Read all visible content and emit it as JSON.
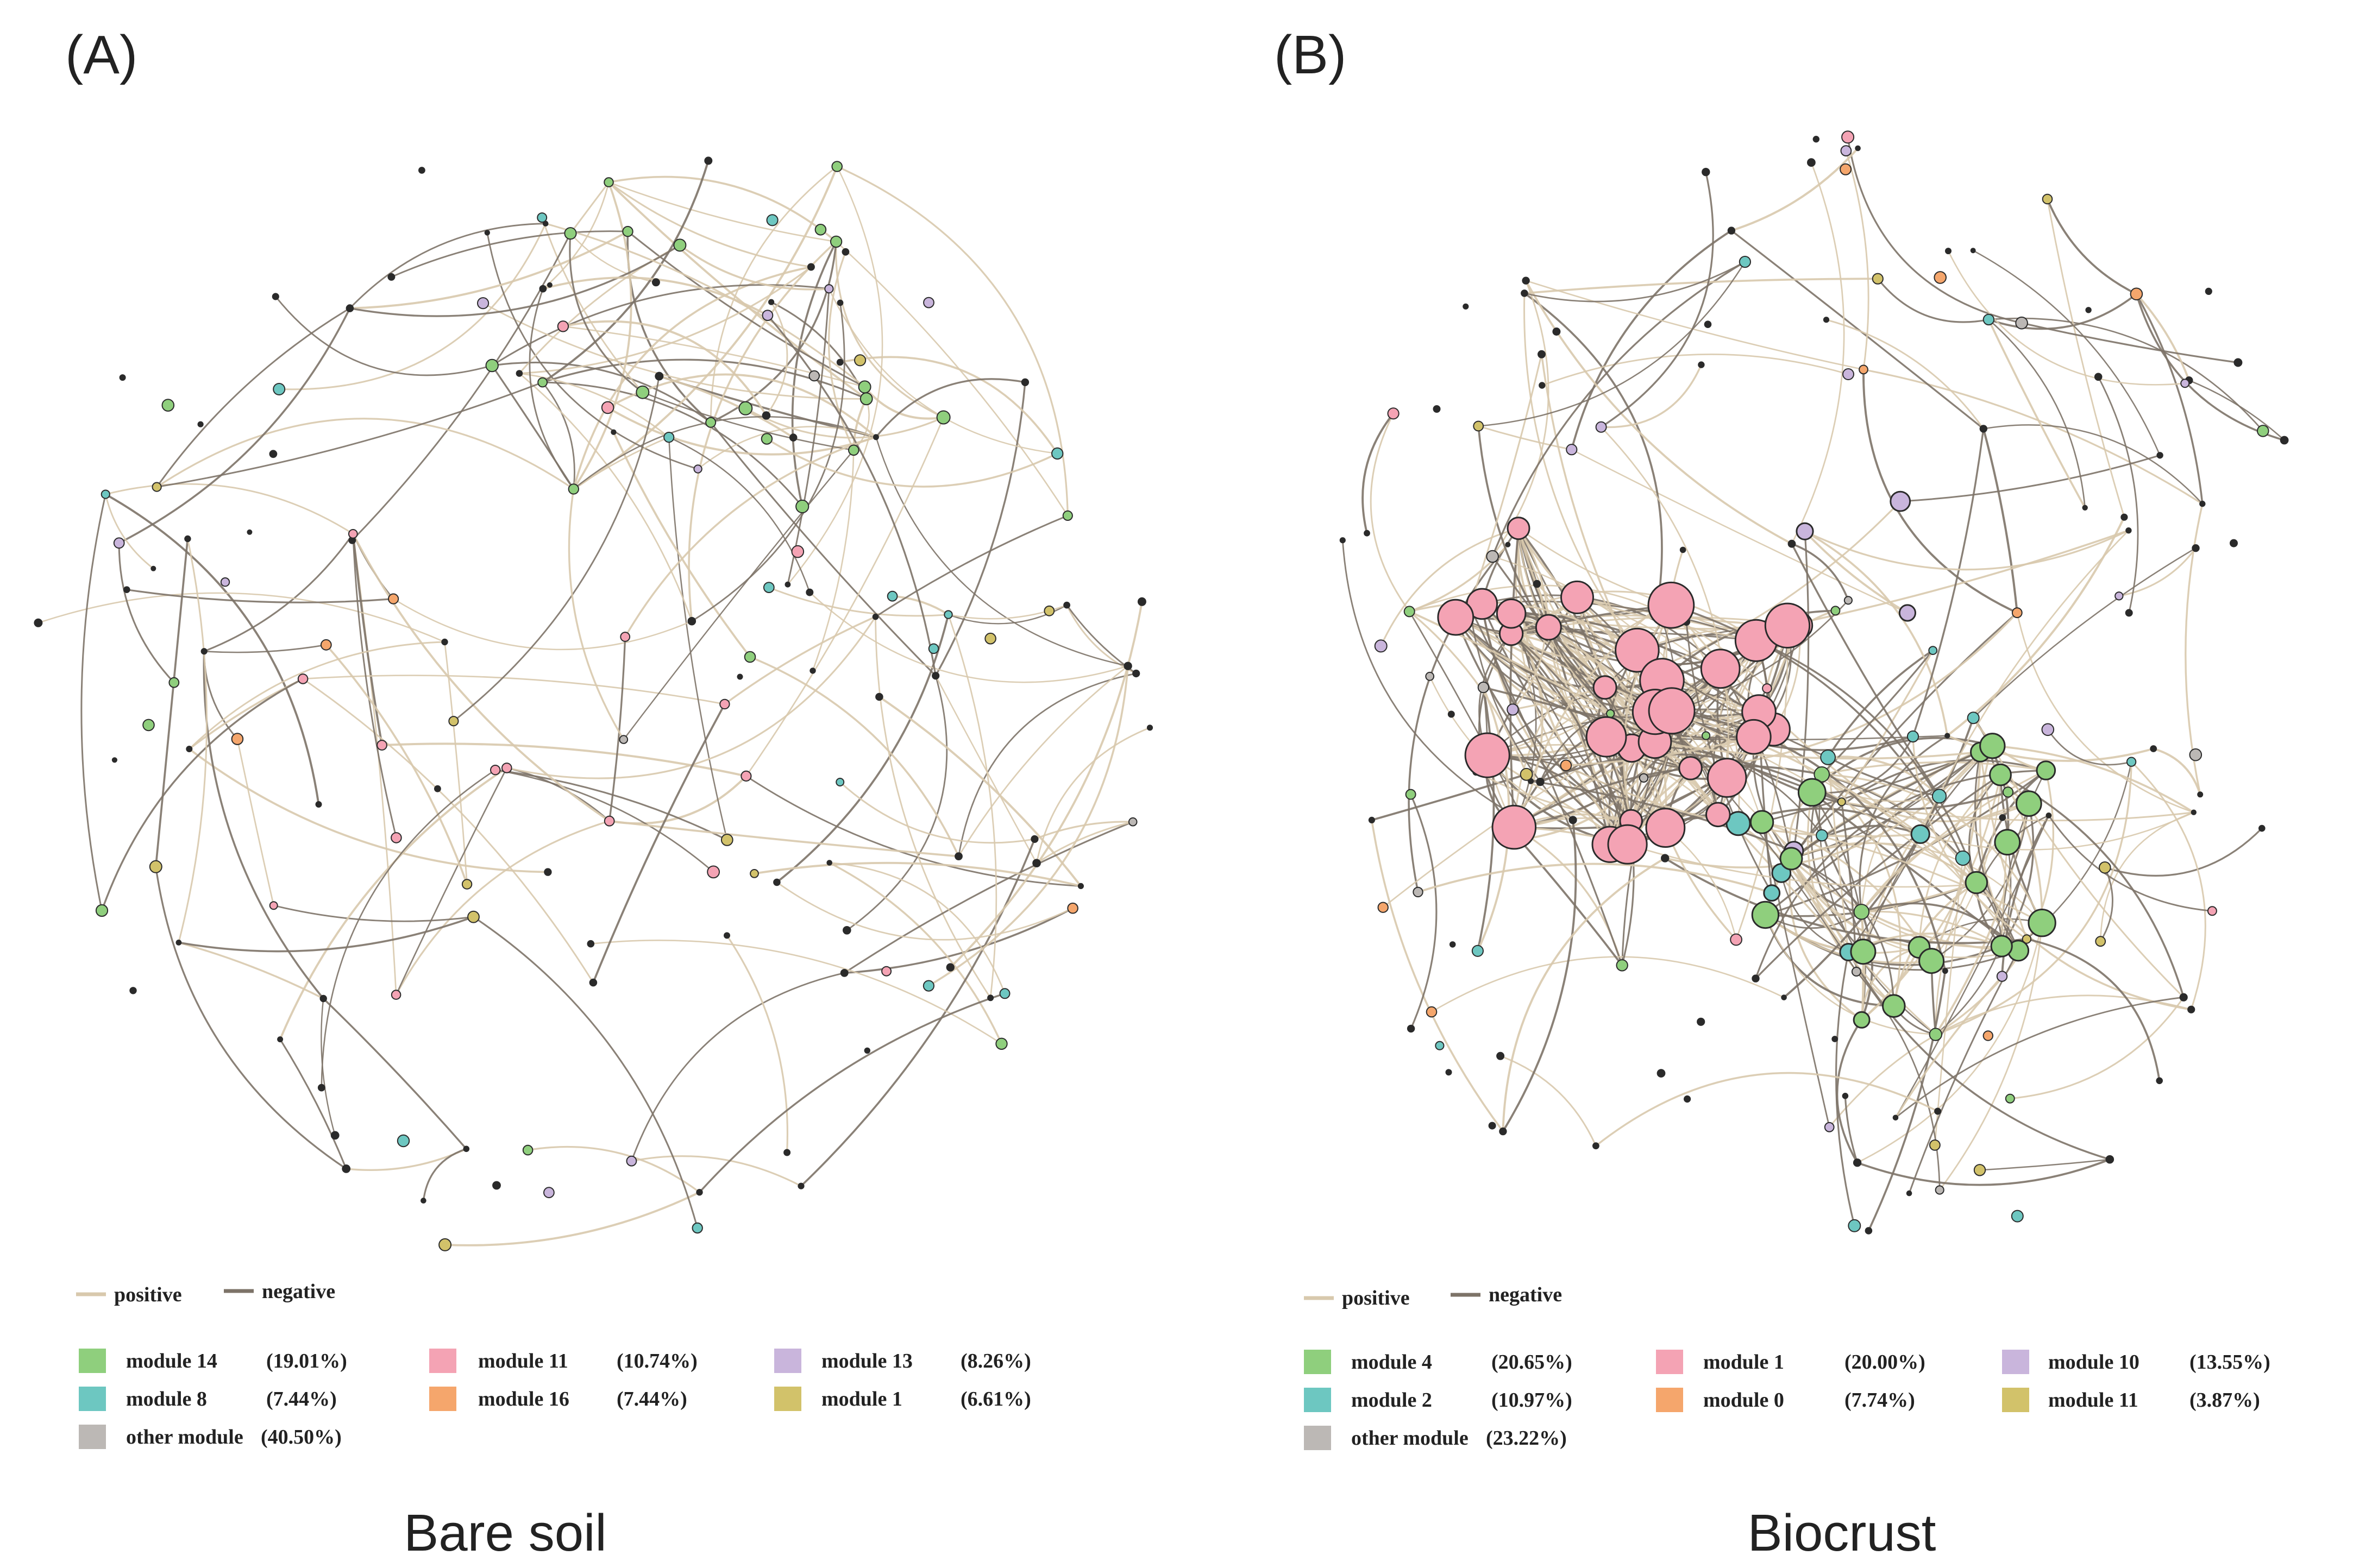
{
  "panels": [
    {
      "id": "A",
      "letter": "(A)",
      "caption": "Bare soil",
      "edge_legend": {
        "positive": "positive",
        "negative": "negative"
      },
      "modules": [
        {
          "name": "module 14",
          "pct": "(19.01%)",
          "color": "#8fcf7d"
        },
        {
          "name": "module 11",
          "pct": "(10.74%)",
          "color": "#f4a3b4"
        },
        {
          "name": "module 13",
          "pct": "(8.26%)",
          "color": "#c9b5dc"
        },
        {
          "name": "module 8",
          "pct": "(7.44%)",
          "color": "#6dc7c1"
        },
        {
          "name": "module 16",
          "pct": "(7.44%)",
          "color": "#f5a66c"
        },
        {
          "name": "module 1",
          "pct": "(6.61%)",
          "color": "#d2c26a"
        },
        {
          "name": "other module",
          "pct": "(40.50%)",
          "color": "#bcb8b5"
        }
      ]
    },
    {
      "id": "B",
      "letter": "(B)",
      "caption": "Biocrust",
      "edge_legend": {
        "positive": "positive",
        "negative": "negative"
      },
      "modules": [
        {
          "name": "module 4",
          "pct": "(20.65%)",
          "color": "#8fcf7d"
        },
        {
          "name": "module 1",
          "pct": "(20.00%)",
          "color": "#f4a3b4"
        },
        {
          "name": "module 10",
          "pct": "(13.55%)",
          "color": "#c9b5dc"
        },
        {
          "name": "module 2",
          "pct": "(10.97%)",
          "color": "#6dc7c1"
        },
        {
          "name": "module 0",
          "pct": "(7.74%)",
          "color": "#f5a66c"
        },
        {
          "name": "module 11",
          "pct": "(3.87%)",
          "color": "#d2c26a"
        },
        {
          "name": "other module",
          "pct": "(23.22%)",
          "color": "#bcb8b5"
        }
      ]
    }
  ],
  "edge_colors": {
    "positive": "#d8c9ad",
    "negative": "#7d7368"
  },
  "node_outline": "#2b2b2b"
}
